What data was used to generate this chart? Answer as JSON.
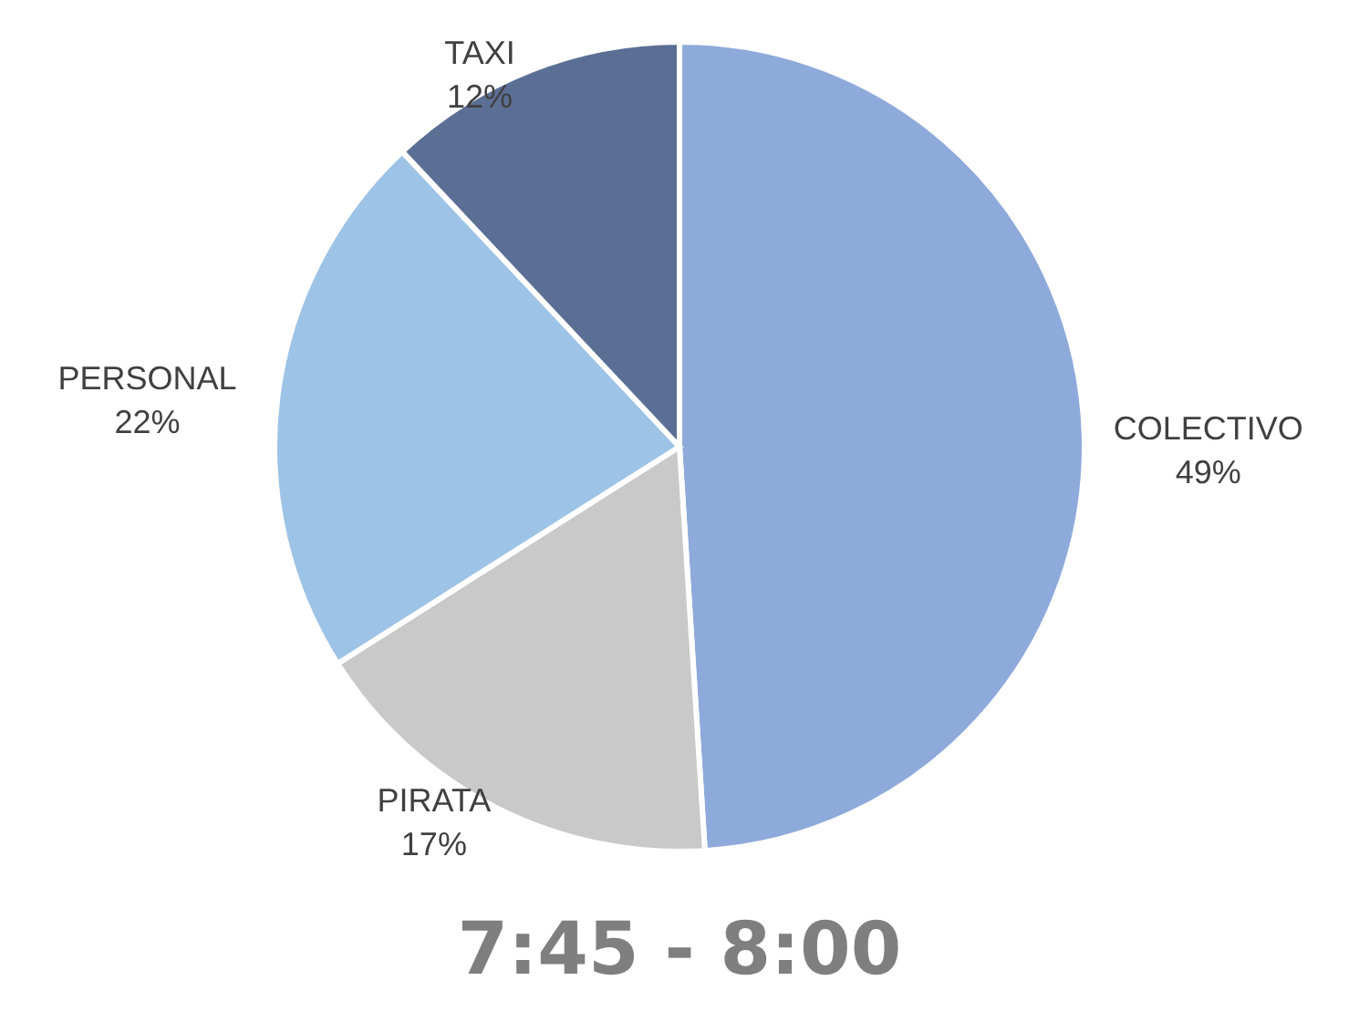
{
  "chart_data": {
    "type": "pie",
    "title": "7:45 - 8:00",
    "categories": [
      "COLECTIVO",
      "PIRATA",
      "PERSONAL",
      "TAXI"
    ],
    "values": [
      49,
      17,
      22,
      12
    ],
    "colors": [
      "#8eaadb",
      "#c9c9c9",
      "#9dc3e6",
      "#5b6f95"
    ],
    "value_labels": [
      "49%",
      "17%",
      "22%",
      "12%"
    ]
  }
}
